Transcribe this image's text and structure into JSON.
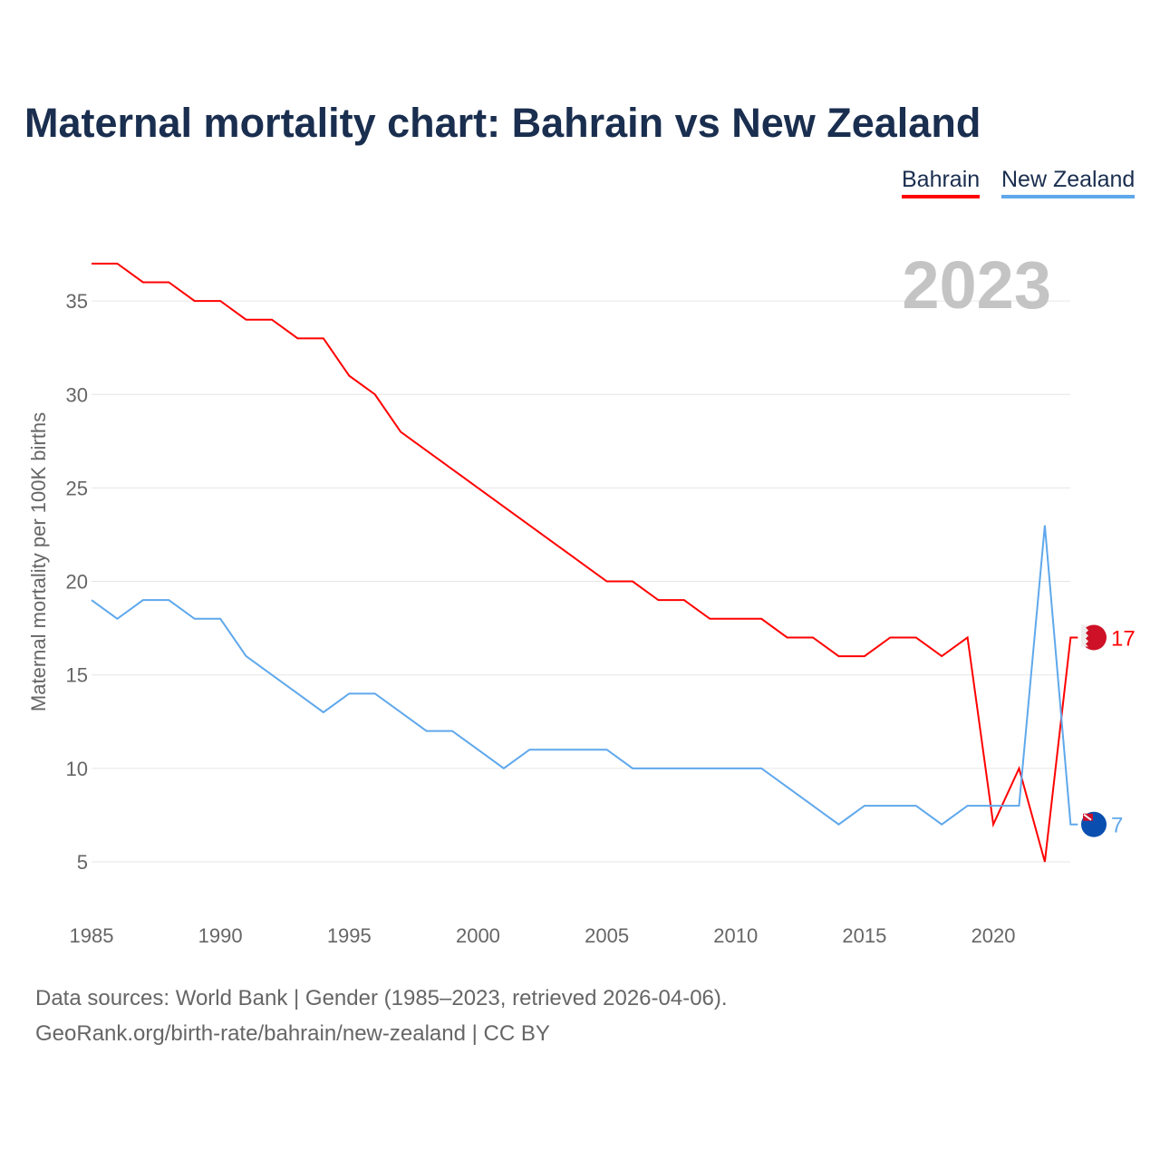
{
  "chart_data": {
    "type": "line",
    "title": "Maternal mortality chart: Bahrain vs New Zealand",
    "ylabel": "Maternal mortality per 100K births",
    "xlabel": "",
    "year_label": "2023",
    "xlim": [
      1985,
      2023
    ],
    "ylim": [
      2,
      39
    ],
    "xticks": [
      1985,
      1990,
      1995,
      2000,
      2005,
      2010,
      2015,
      2020
    ],
    "yticks": [
      5,
      10,
      15,
      20,
      25,
      30,
      35
    ],
    "grid": true,
    "legend_position": "top-right",
    "x": [
      1985,
      1986,
      1987,
      1988,
      1989,
      1990,
      1991,
      1992,
      1993,
      1994,
      1995,
      1996,
      1997,
      1998,
      1999,
      2000,
      2001,
      2002,
      2003,
      2004,
      2005,
      2006,
      2007,
      2008,
      2009,
      2010,
      2011,
      2012,
      2013,
      2014,
      2015,
      2016,
      2017,
      2018,
      2019,
      2020,
      2021,
      2022,
      2023
    ],
    "series": [
      {
        "name": "Bahrain",
        "color": "#ff0000",
        "end_label": "17",
        "values": [
          37,
          37,
          36,
          36,
          35,
          35,
          34,
          34,
          33,
          33,
          31,
          30,
          28,
          27,
          26,
          25,
          24,
          23,
          22,
          21,
          20,
          20,
          19,
          19,
          18,
          18,
          18,
          17,
          17,
          16,
          16,
          17,
          17,
          16,
          17,
          7,
          10,
          5,
          17
        ]
      },
      {
        "name": "New Zealand",
        "color": "#5fa8ec",
        "end_label": "7",
        "values": [
          19,
          18,
          19,
          19,
          18,
          18,
          16,
          15,
          14,
          13,
          14,
          14,
          13,
          12,
          12,
          11,
          10,
          11,
          11,
          11,
          11,
          10,
          10,
          10,
          10,
          10,
          10,
          9,
          8,
          7,
          8,
          8,
          8,
          7,
          8,
          8,
          8,
          23,
          7
        ]
      }
    ]
  },
  "footer": {
    "line1": "Data sources: World Bank | Gender (1985–2023, retrieved 2026-04-06).",
    "line2": "GeoRank.org/birth-rate/bahrain/new-zealand | CC BY"
  }
}
